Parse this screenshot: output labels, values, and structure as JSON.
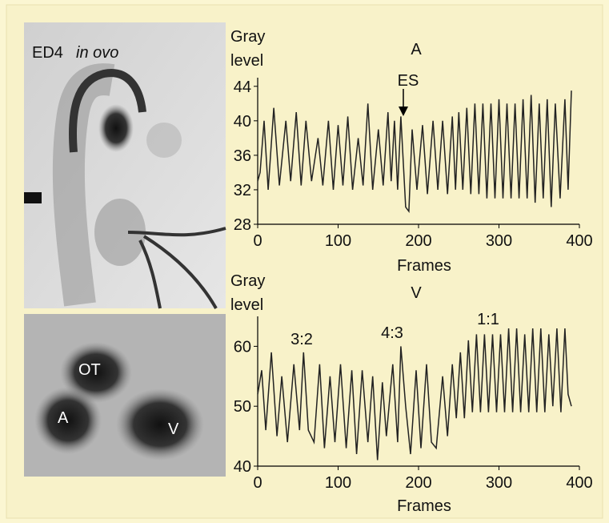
{
  "images": {
    "top_label": "ED4",
    "top_label_italic": "in ovo",
    "bottom_labels": [
      "OT",
      "A",
      "V"
    ]
  },
  "chart_data": [
    {
      "type": "line",
      "title": "A",
      "ylabel": [
        "Gray",
        "level"
      ],
      "xlabel": "Frames",
      "annotations": [
        "ES"
      ],
      "xlim": [
        0,
        400
      ],
      "xticks": [
        0,
        100,
        200,
        300,
        400
      ],
      "ylim": [
        28,
        45
      ],
      "yticks": [
        28,
        32,
        36,
        40,
        44
      ],
      "color": "#222222",
      "x": [
        0,
        3,
        8,
        13,
        20,
        27,
        35,
        41,
        48,
        54,
        60,
        67,
        75,
        81,
        88,
        94,
        100,
        106,
        112,
        118,
        125,
        131,
        137,
        143,
        150,
        156,
        162,
        166,
        170,
        174,
        178,
        184,
        188,
        192,
        198,
        205,
        211,
        218,
        224,
        230,
        236,
        242,
        246,
        250,
        255,
        260,
        265,
        270,
        275,
        280,
        285,
        290,
        295,
        300,
        305,
        310,
        315,
        320,
        325,
        330,
        335,
        340,
        345,
        350,
        355,
        360,
        365,
        370,
        376,
        382,
        386,
        390
      ],
      "values": [
        33,
        34,
        40,
        32,
        41.5,
        32.5,
        40,
        33,
        41,
        32.5,
        40,
        33,
        38,
        32.5,
        40,
        32,
        39.5,
        32.5,
        40.5,
        32,
        38,
        32.5,
        42,
        32,
        39,
        32.5,
        41,
        33,
        40,
        32,
        40.5,
        30,
        29.5,
        39,
        32,
        39.5,
        31.5,
        40,
        32,
        40,
        31.5,
        40.5,
        32,
        41,
        32,
        41.5,
        31.5,
        42,
        31.5,
        42,
        31,
        42,
        31,
        42.5,
        31,
        42,
        31,
        42,
        31,
        42.5,
        31,
        43,
        30.5,
        42,
        31,
        42.5,
        30,
        42,
        31,
        42.5,
        32,
        43.5
      ]
    },
    {
      "type": "line",
      "title": "V",
      "ylabel": [
        "Gray",
        "level"
      ],
      "xlabel": "Frames",
      "annotations": [
        "3:2",
        "4:3",
        "1:1"
      ],
      "xlim": [
        0,
        400
      ],
      "xticks": [
        0,
        100,
        200,
        300,
        400
      ],
      "ylim": [
        40,
        65
      ],
      "yticks": [
        40,
        50,
        60
      ],
      "color": "#222222",
      "x": [
        0,
        5,
        10,
        17,
        24,
        30,
        37,
        45,
        52,
        57,
        63,
        70,
        77,
        83,
        90,
        96,
        103,
        110,
        117,
        123,
        130,
        137,
        143,
        149,
        155,
        160,
        168,
        174,
        178,
        184,
        190,
        197,
        203,
        210,
        216,
        222,
        230,
        236,
        242,
        247,
        252,
        257,
        262,
        267,
        272,
        277,
        282,
        287,
        292,
        297,
        302,
        307,
        312,
        317,
        322,
        327,
        332,
        337,
        342,
        347,
        352,
        357,
        362,
        367,
        372,
        377,
        382,
        386,
        390
      ],
      "values": [
        52,
        56,
        46,
        59,
        45,
        55,
        44,
        57,
        46,
        59,
        46,
        44,
        57,
        43,
        55,
        44,
        57,
        43,
        56,
        42,
        56,
        44,
        55,
        41,
        54,
        45,
        57,
        44,
        60,
        50,
        42,
        56,
        43,
        57,
        44,
        43,
        55,
        45,
        57,
        48,
        59,
        48,
        61,
        49,
        62,
        49,
        62,
        49,
        62,
        49,
        62,
        49,
        63,
        49,
        63,
        49,
        62,
        49,
        63,
        49,
        63,
        49,
        62,
        50,
        63,
        49,
        63,
        52,
        50
      ]
    }
  ]
}
